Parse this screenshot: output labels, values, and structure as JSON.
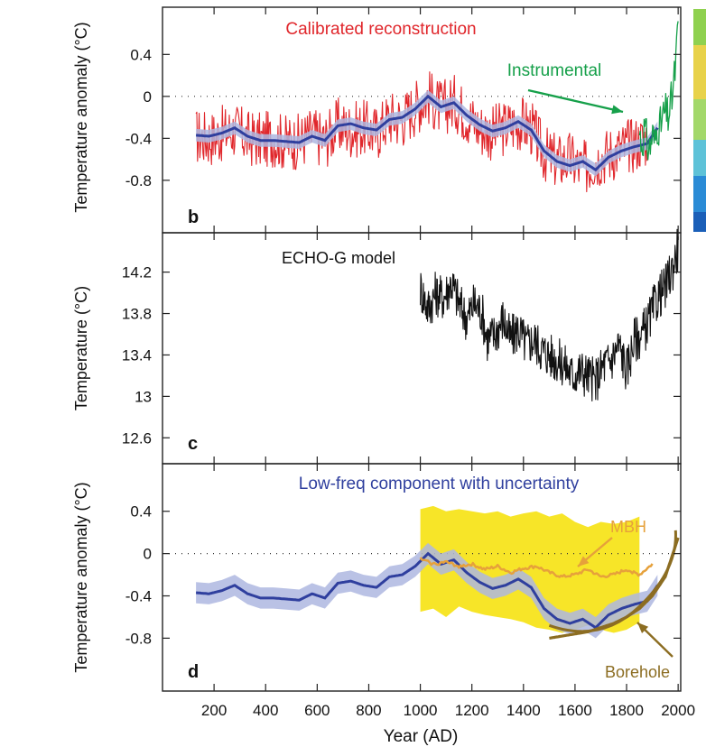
{
  "xlabel": "Year (AD)",
  "x_ticks": [
    200,
    400,
    600,
    800,
    1000,
    1200,
    1400,
    1600,
    1800,
    2000
  ],
  "colors": {
    "reconstruction": "#e0262b",
    "instrumental": "#16a04a",
    "lowfreq": "#2f3f9e",
    "lowfreq_band": "#aeb7e0",
    "model": "#111111",
    "uncertainty": "#f7e528",
    "mbh": "#e6a13b",
    "borehole": "#8c6d22"
  },
  "chart_data": [
    {
      "panel": "b",
      "type": "line",
      "title": "Calibrated reconstruction",
      "ylabel": "Temperature anomaly (°C)",
      "xlim": [
        0,
        2010
      ],
      "ylim": [
        -1.3,
        0.85
      ],
      "y_ticks": [
        "0.4",
        "0",
        "-0.4",
        "-0.8"
      ],
      "y_tick_values": [
        0.4,
        0,
        -0.4,
        -0.8
      ],
      "zero_line": true,
      "annotation": "Instrumental",
      "series": [
        {
          "role": "reconstruction (annual, red)",
          "x": [
            130,
            180,
            230,
            280,
            330,
            380,
            430,
            480,
            530,
            580,
            630,
            680,
            730,
            780,
            830,
            880,
            930,
            980,
            1030,
            1080,
            1130,
            1180,
            1230,
            1280,
            1330,
            1380,
            1430,
            1480,
            1530,
            1580,
            1630,
            1680,
            1730,
            1780,
            1830,
            1880
          ],
          "values": [
            -0.38,
            -0.4,
            -0.36,
            -0.32,
            -0.4,
            -0.42,
            -0.4,
            -0.44,
            -0.43,
            -0.36,
            -0.42,
            -0.28,
            -0.32,
            -0.3,
            -0.35,
            -0.2,
            -0.22,
            -0.1,
            0.0,
            -0.12,
            -0.05,
            -0.18,
            -0.3,
            -0.35,
            -0.3,
            -0.25,
            -0.3,
            -0.55,
            -0.62,
            -0.6,
            -0.7,
            -0.6,
            -0.55,
            -0.5,
            -0.45,
            -0.4
          ]
        },
        {
          "role": "low-frequency component (blue)",
          "x": [
            130,
            180,
            230,
            280,
            330,
            380,
            430,
            480,
            530,
            580,
            630,
            680,
            730,
            780,
            830,
            880,
            930,
            980,
            1030,
            1080,
            1130,
            1180,
            1230,
            1280,
            1330,
            1380,
            1430,
            1480,
            1530,
            1580,
            1630,
            1680,
            1730,
            1780,
            1830,
            1880,
            1920
          ],
          "values": [
            -0.37,
            -0.38,
            -0.35,
            -0.3,
            -0.38,
            -0.42,
            -0.42,
            -0.43,
            -0.44,
            -0.38,
            -0.42,
            -0.28,
            -0.26,
            -0.3,
            -0.32,
            -0.22,
            -0.2,
            -0.12,
            0.0,
            -0.1,
            -0.06,
            -0.18,
            -0.27,
            -0.33,
            -0.3,
            -0.24,
            -0.32,
            -0.52,
            -0.62,
            -0.66,
            -0.62,
            -0.7,
            -0.58,
            -0.52,
            -0.48,
            -0.45,
            -0.3
          ]
        },
        {
          "role": "instrumental (green)",
          "x": [
            1850,
            1860,
            1870,
            1880,
            1890,
            1900,
            1910,
            1920,
            1930,
            1940,
            1950,
            1960,
            1970,
            1980,
            1990,
            2000
          ],
          "values": [
            -0.35,
            -0.45,
            -0.3,
            -0.45,
            -0.5,
            -0.35,
            -0.45,
            -0.25,
            -0.3,
            -0.2,
            -0.15,
            -0.2,
            -0.1,
            0.05,
            0.3,
            0.65
          ]
        }
      ]
    },
    {
      "panel": "c",
      "type": "line",
      "title": "ECHO-G model",
      "ylabel": "Temperature (°C)",
      "xlim": [
        0,
        2010
      ],
      "ylim": [
        12.35,
        14.58
      ],
      "y_ticks": [
        "14.2",
        "13.8",
        "13.4",
        "13",
        "12.6"
      ],
      "y_tick_values": [
        14.2,
        13.8,
        13.4,
        13.0,
        12.6
      ],
      "series": [
        {
          "role": "model temperature (black)",
          "x": [
            1000,
            1030,
            1060,
            1090,
            1120,
            1150,
            1180,
            1210,
            1240,
            1260,
            1290,
            1320,
            1350,
            1380,
            1410,
            1440,
            1470,
            1500,
            1530,
            1560,
            1590,
            1620,
            1650,
            1680,
            1710,
            1740,
            1770,
            1800,
            1830,
            1860,
            1890,
            1920,
            1950,
            1980,
            2000
          ],
          "values": [
            14.05,
            13.85,
            14.0,
            13.95,
            14.1,
            13.9,
            13.75,
            13.9,
            13.8,
            13.55,
            13.6,
            13.75,
            13.55,
            13.65,
            13.5,
            13.55,
            13.45,
            13.4,
            13.35,
            13.3,
            13.2,
            13.25,
            13.2,
            13.15,
            13.3,
            13.35,
            13.5,
            13.25,
            13.55,
            13.6,
            13.75,
            13.95,
            14.05,
            14.25,
            14.45
          ]
        }
      ]
    },
    {
      "panel": "d",
      "type": "line",
      "title": "Low-freq component with uncertainty",
      "ylabel": "Temperature anomaly (°C)",
      "xlabel": "Year (AD)",
      "xlim": [
        0,
        2010
      ],
      "ylim": [
        -1.3,
        0.85
      ],
      "y_ticks": [
        "0.4",
        "0",
        "-0.4",
        "-0.8"
      ],
      "y_tick_values": [
        0.4,
        0,
        -0.4,
        -0.8
      ],
      "zero_line": true,
      "annotations": [
        "MBH",
        "Borehole"
      ],
      "series": [
        {
          "role": "low-frequency component (blue)",
          "x": [
            130,
            180,
            230,
            280,
            330,
            380,
            430,
            480,
            530,
            580,
            630,
            680,
            730,
            780,
            830,
            880,
            930,
            980,
            1030,
            1080,
            1130,
            1180,
            1230,
            1280,
            1330,
            1380,
            1430,
            1480,
            1530,
            1580,
            1630,
            1680,
            1730,
            1780,
            1830,
            1880,
            1920
          ],
          "values": [
            -0.37,
            -0.38,
            -0.35,
            -0.3,
            -0.38,
            -0.42,
            -0.42,
            -0.43,
            -0.44,
            -0.38,
            -0.42,
            -0.28,
            -0.26,
            -0.3,
            -0.32,
            -0.22,
            -0.2,
            -0.12,
            0.0,
            -0.1,
            -0.06,
            -0.18,
            -0.27,
            -0.33,
            -0.3,
            -0.24,
            -0.32,
            -0.52,
            -0.62,
            -0.66,
            -0.62,
            -0.7,
            -0.58,
            -0.52,
            -0.48,
            -0.45,
            -0.3
          ],
          "uncertainty": 0.1
        },
        {
          "role": "uncertainty range (yellow)",
          "x": [
            1000,
            1050,
            1100,
            1150,
            1200,
            1250,
            1300,
            1350,
            1400,
            1450,
            1500,
            1550,
            1600,
            1650,
            1700,
            1750,
            1800,
            1850
          ],
          "upper": [
            0.42,
            0.45,
            0.4,
            0.42,
            0.4,
            0.38,
            0.4,
            0.35,
            0.38,
            0.4,
            0.35,
            0.38,
            0.3,
            0.25,
            0.3,
            0.28,
            0.3,
            0.35
          ],
          "lower": [
            -0.55,
            -0.52,
            -0.6,
            -0.5,
            -0.55,
            -0.58,
            -0.6,
            -0.62,
            -0.65,
            -0.7,
            -0.72,
            -0.75,
            -0.72,
            -0.68,
            -0.72,
            -0.75,
            -0.72,
            -0.65
          ]
        },
        {
          "role": "MBH (orange)",
          "x": [
            1000,
            1050,
            1100,
            1150,
            1200,
            1250,
            1300,
            1350,
            1400,
            1450,
            1500,
            1550,
            1600,
            1650,
            1700,
            1750,
            1800,
            1850,
            1900
          ],
          "values": [
            -0.05,
            -0.1,
            -0.08,
            -0.12,
            -0.1,
            -0.15,
            -0.12,
            -0.18,
            -0.14,
            -0.12,
            -0.18,
            -0.22,
            -0.2,
            -0.15,
            -0.22,
            -0.2,
            -0.15,
            -0.2,
            -0.1
          ]
        },
        {
          "role": "borehole (brown)",
          "x": [
            1500,
            1550,
            1600,
            1650,
            1700,
            1750,
            1800,
            1850,
            1900,
            1950,
            2000
          ],
          "values": [
            -0.8,
            -0.78,
            -0.76,
            -0.74,
            -0.7,
            -0.66,
            -0.6,
            -0.52,
            -0.4,
            -0.22,
            0.15
          ]
        }
      ]
    }
  ]
}
